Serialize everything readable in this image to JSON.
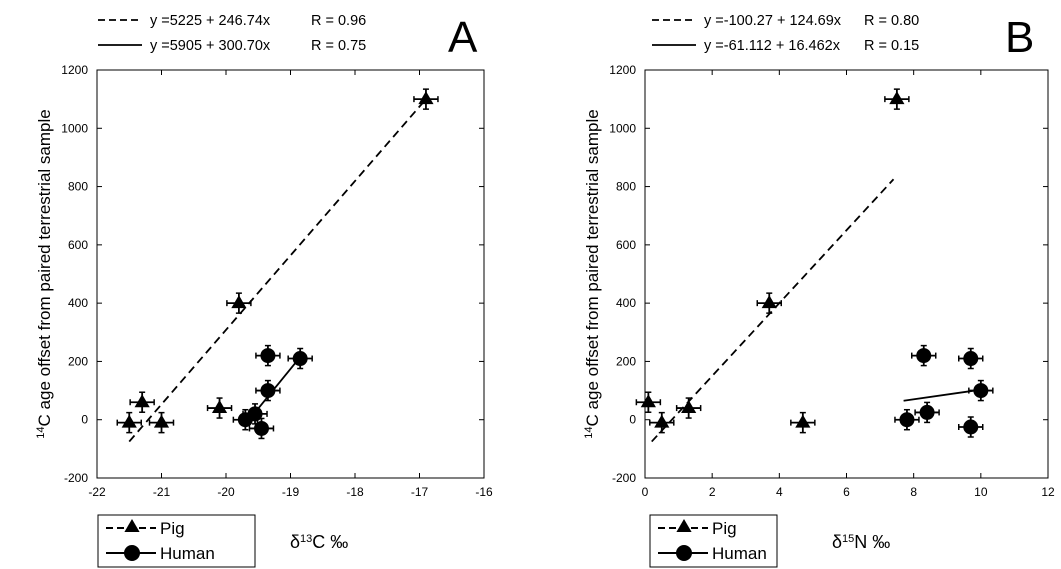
{
  "chart_data": [
    {
      "type": "scatter",
      "panel_label": "A",
      "ylabel_sup": "14",
      "ylabel_main": "C age offset from paired terrestrial sample",
      "xlabel_delta": "δ",
      "xlabel_sup": "13",
      "xlabel_rest": "C ‰",
      "xlim": [
        -22,
        -16
      ],
      "ylim": [
        -200,
        1200
      ],
      "xticks": [
        -22,
        -21,
        -20,
        -19,
        -18,
        -17,
        -16
      ],
      "yticks": [
        -200,
        0,
        200,
        400,
        600,
        800,
        1000,
        1200
      ],
      "series": [
        {
          "name": "Pig",
          "marker": "triangle",
          "points": [
            {
              "x": -21.5,
              "y": -10
            },
            {
              "x": -21.3,
              "y": 60
            },
            {
              "x": -21.0,
              "y": -10
            },
            {
              "x": -20.1,
              "y": 40
            },
            {
              "x": -19.8,
              "y": 400
            },
            {
              "x": -16.9,
              "y": 1100
            }
          ],
          "fit": {
            "equation": "y =5225 + 246.74x",
            "r_label": "R = 0.96",
            "style": "dashed",
            "x_range": [
              -21.5,
              -16.9
            ],
            "y_range": [
              -75,
              1100
            ]
          }
        },
        {
          "name": "Human",
          "marker": "circle",
          "points": [
            {
              "x": -19.7,
              "y": 0
            },
            {
              "x": -19.55,
              "y": 20
            },
            {
              "x": -19.45,
              "y": -30
            },
            {
              "x": -19.35,
              "y": 220
            },
            {
              "x": -19.35,
              "y": 100
            },
            {
              "x": -18.85,
              "y": 210
            }
          ],
          "fit": {
            "equation": "y =5905 + 300.70x",
            "r_label": "R = 0.75",
            "style": "solid",
            "x_range": [
              -19.55,
              -18.85
            ],
            "y_range": [
              25,
              215
            ]
          }
        }
      ]
    },
    {
      "type": "scatter",
      "panel_label": "B",
      "ylabel_sup": "14",
      "ylabel_main": "C age offset from paired terrestrial sample",
      "xlabel_delta": "δ",
      "xlabel_sup": "15",
      "xlabel_rest": "N ‰",
      "xlim": [
        0,
        12
      ],
      "ylim": [
        -200,
        1200
      ],
      "xticks": [
        0,
        2,
        4,
        6,
        8,
        10,
        12
      ],
      "yticks": [
        -200,
        0,
        200,
        400,
        600,
        800,
        1000,
        1200
      ],
      "series": [
        {
          "name": "Pig",
          "marker": "triangle",
          "points": [
            {
              "x": 0.1,
              "y": 60
            },
            {
              "x": 0.5,
              "y": -10
            },
            {
              "x": 1.3,
              "y": 40
            },
            {
              "x": 3.7,
              "y": 400
            },
            {
              "x": 4.7,
              "y": -10
            },
            {
              "x": 7.5,
              "y": 1100
            }
          ],
          "fit": {
            "equation": "y =-100.27 + 124.69x",
            "r_label": "R = 0.80",
            "style": "dashed",
            "x_range": [
              0.2,
              7.4
            ],
            "y_range": [
              -75,
              825
            ]
          }
        },
        {
          "name": "Human",
          "marker": "circle",
          "points": [
            {
              "x": 7.8,
              "y": 0
            },
            {
              "x": 8.3,
              "y": 220
            },
            {
              "x": 8.4,
              "y": 25
            },
            {
              "x": 9.7,
              "y": 210
            },
            {
              "x": 9.7,
              "y": -25
            },
            {
              "x": 10.0,
              "y": 100
            }
          ],
          "fit": {
            "equation": "y =-61.112 + 16.462x",
            "r_label": "R = 0.15",
            "style": "solid",
            "x_range": [
              7.7,
              10.0
            ],
            "y_range": [
              65,
              103
            ]
          }
        }
      ]
    }
  ],
  "legend": {
    "items": [
      {
        "label": "Pig",
        "marker": "triangle"
      },
      {
        "label": "Human",
        "marker": "circle"
      }
    ]
  }
}
